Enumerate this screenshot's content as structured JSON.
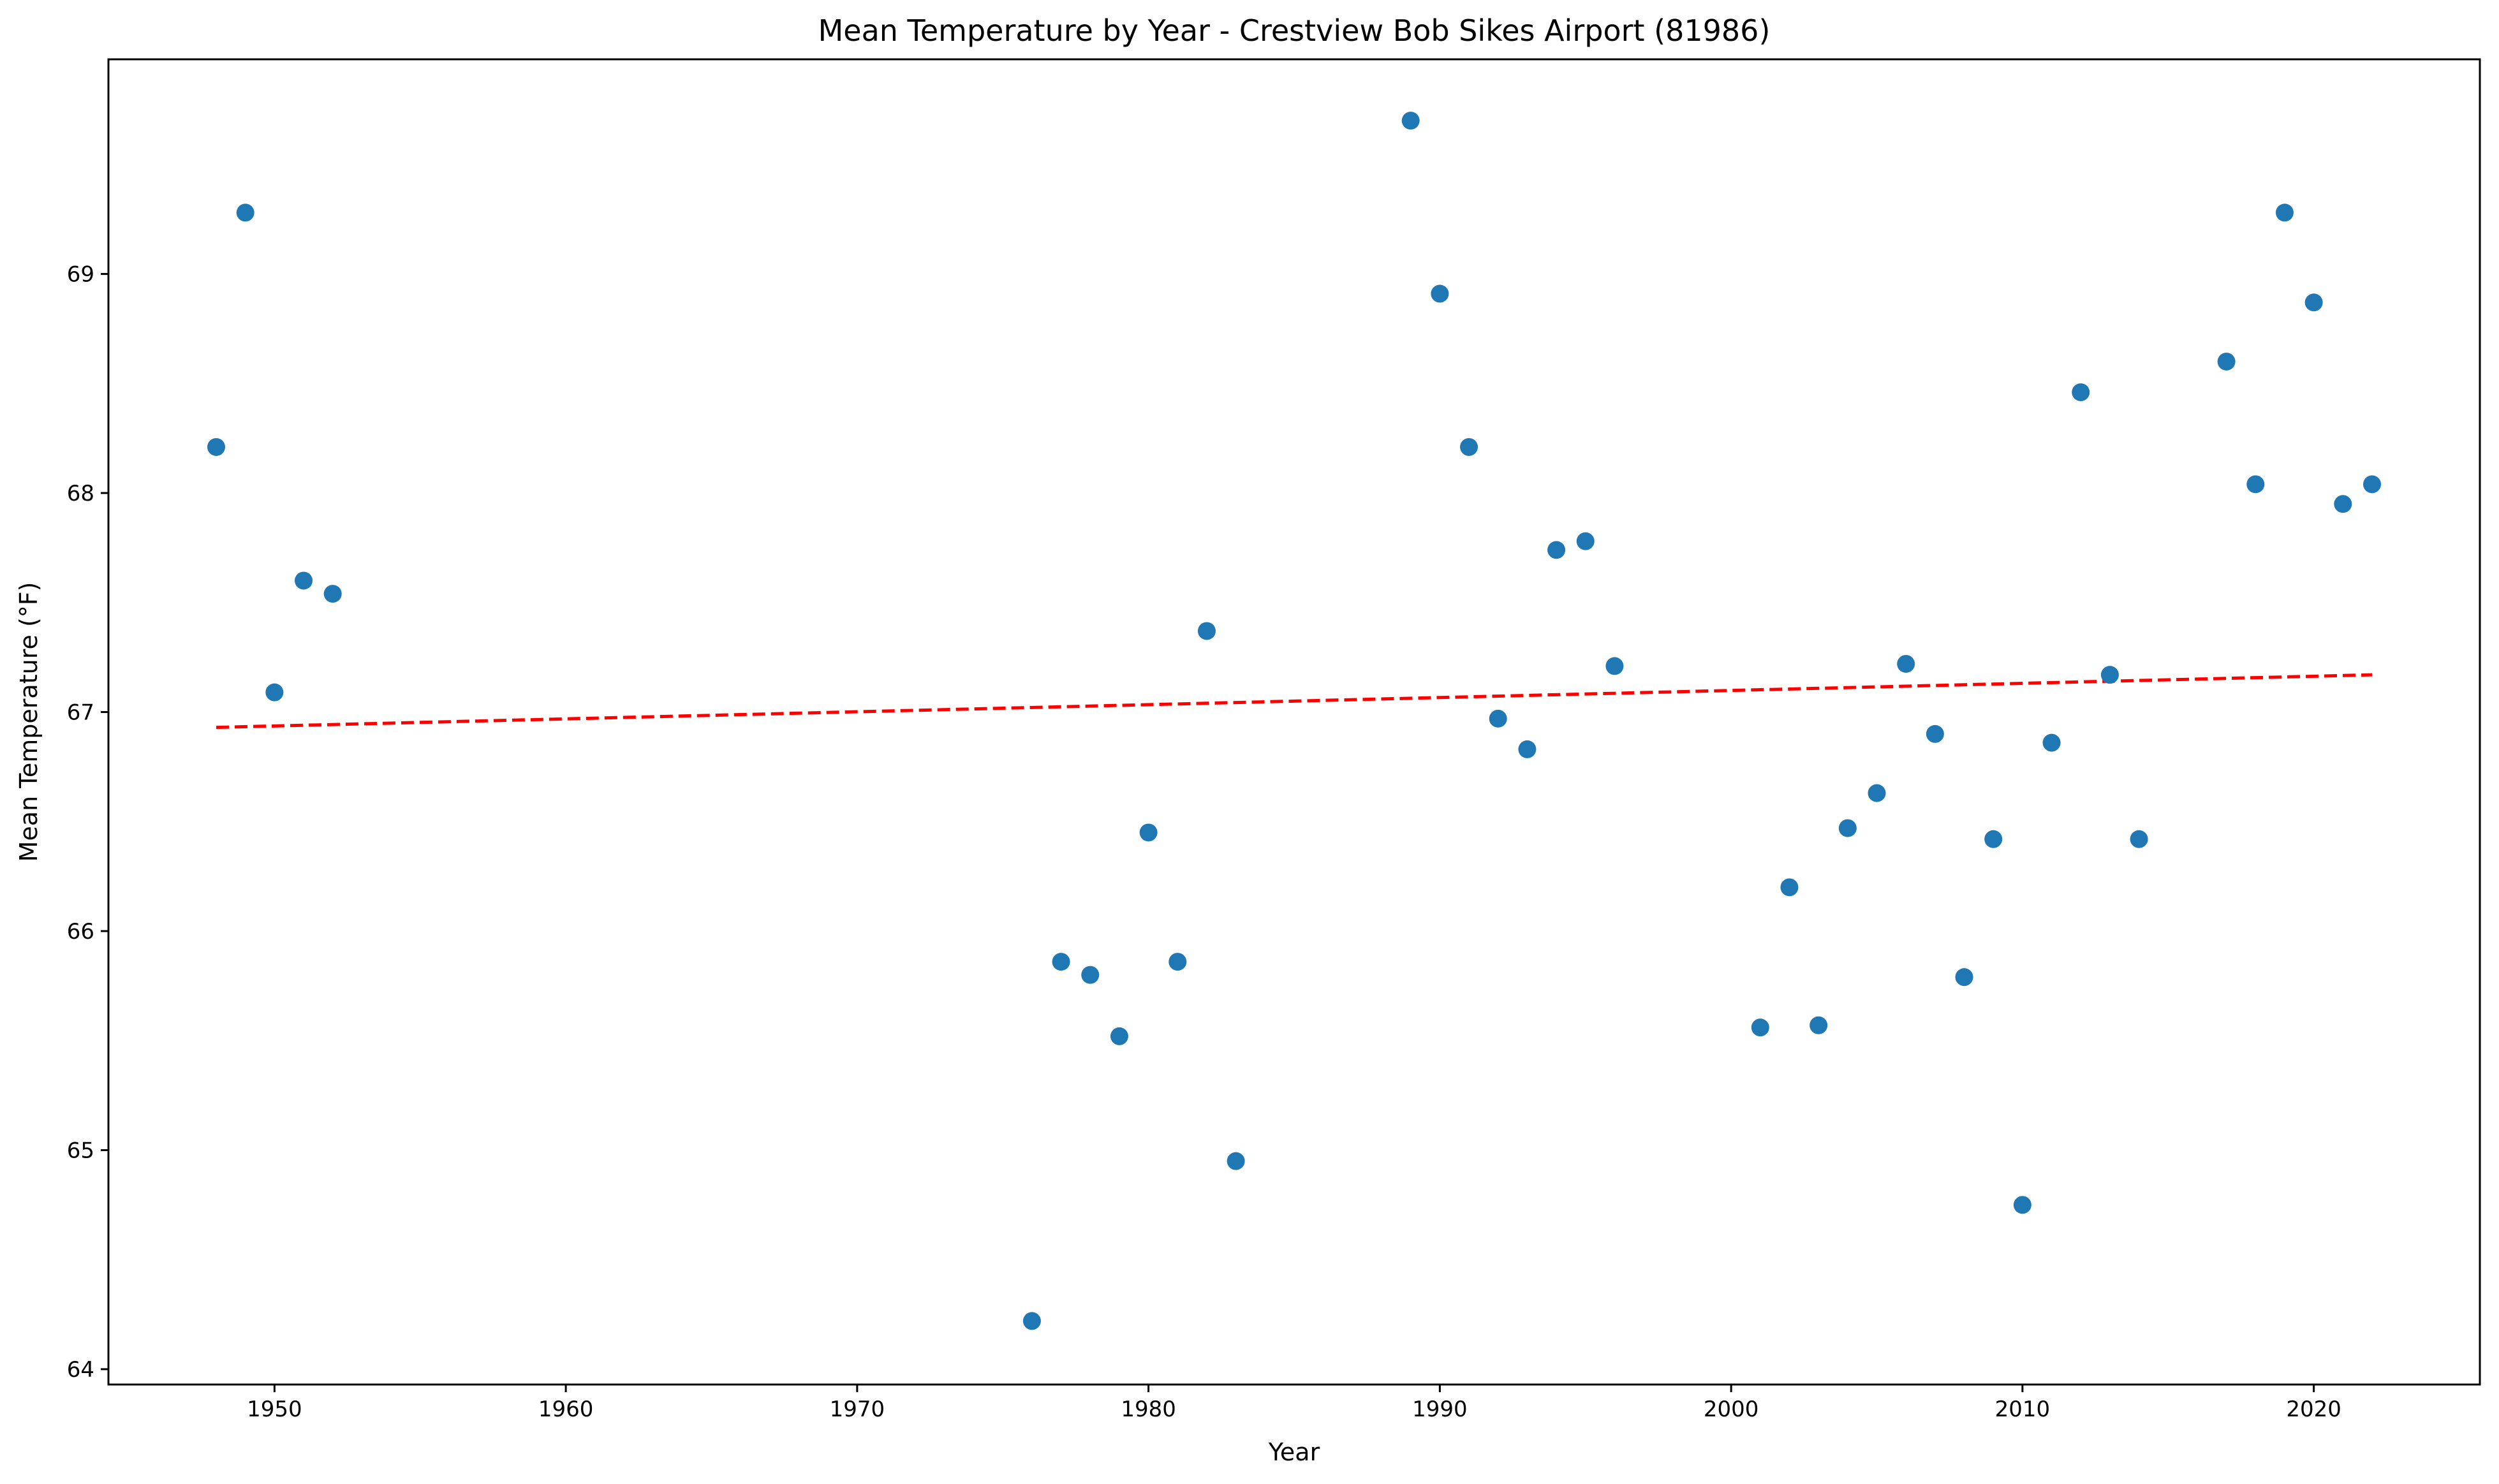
{
  "chart_data": {
    "type": "scatter",
    "title": "Mean Temperature by Year - Crestview Bob Sikes Airport (81986)",
    "xlabel": "Year",
    "ylabel": "Mean Temperature (°F)",
    "xlim": [
      1944.3,
      2025.7
    ],
    "ylim": [
      63.93,
      69.98
    ],
    "x_ticks": [
      1950,
      1960,
      1970,
      1980,
      1990,
      2000,
      2010,
      2020
    ],
    "y_ticks": [
      64,
      65,
      66,
      67,
      68,
      69
    ],
    "grid": false,
    "colors": {
      "points": "#1f77b4",
      "trend": "#ff0000"
    },
    "series": [
      {
        "x": [
          1948,
          1949,
          1950,
          1951,
          1952,
          1976,
          1977,
          1978,
          1979,
          1980,
          1981,
          1982,
          1983,
          1989,
          1990,
          1991,
          1992,
          1993,
          1994,
          1995,
          1996,
          2001,
          2002,
          2003,
          2004,
          2005,
          2006,
          2007,
          2008,
          2009,
          2010,
          2011,
          2012,
          2013,
          2014,
          2017,
          2018,
          2019,
          2020,
          2021,
          2022
        ],
        "y": [
          68.21,
          69.28,
          67.09,
          67.6,
          67.54,
          64.22,
          65.86,
          65.8,
          65.52,
          66.45,
          65.86,
          67.37,
          64.95,
          69.7,
          68.91,
          68.21,
          66.97,
          66.83,
          67.74,
          67.78,
          67.21,
          65.56,
          66.2,
          65.57,
          66.47,
          66.63,
          67.22,
          66.9,
          65.79,
          66.42,
          64.75,
          66.86,
          68.46,
          67.17,
          66.42,
          68.6,
          68.04,
          69.28,
          68.87,
          67.95,
          68.04
        ]
      }
    ],
    "trendline": {
      "style": "dashed",
      "x": [
        1948,
        2022
      ],
      "y": [
        66.93,
        67.17
      ]
    }
  }
}
